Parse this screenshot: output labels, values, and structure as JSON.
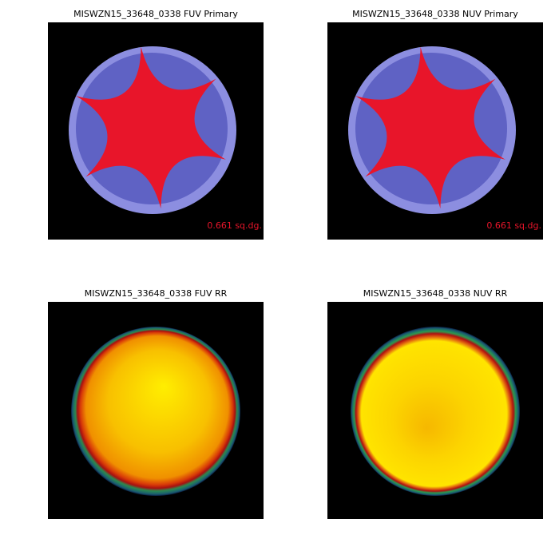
{
  "panels": [
    {
      "title": "MISWZN15_33648_0338 FUV Primary",
      "label": "0.661 sq.dg."
    },
    {
      "title": "MISWZN15_33648_0338 NUV Primary",
      "label": "0.661 sq.dg."
    },
    {
      "title": "MISWZN15_33648_0338 FUV RR"
    },
    {
      "title": "MISWZN15_33648_0338 NUV RR"
    }
  ]
}
